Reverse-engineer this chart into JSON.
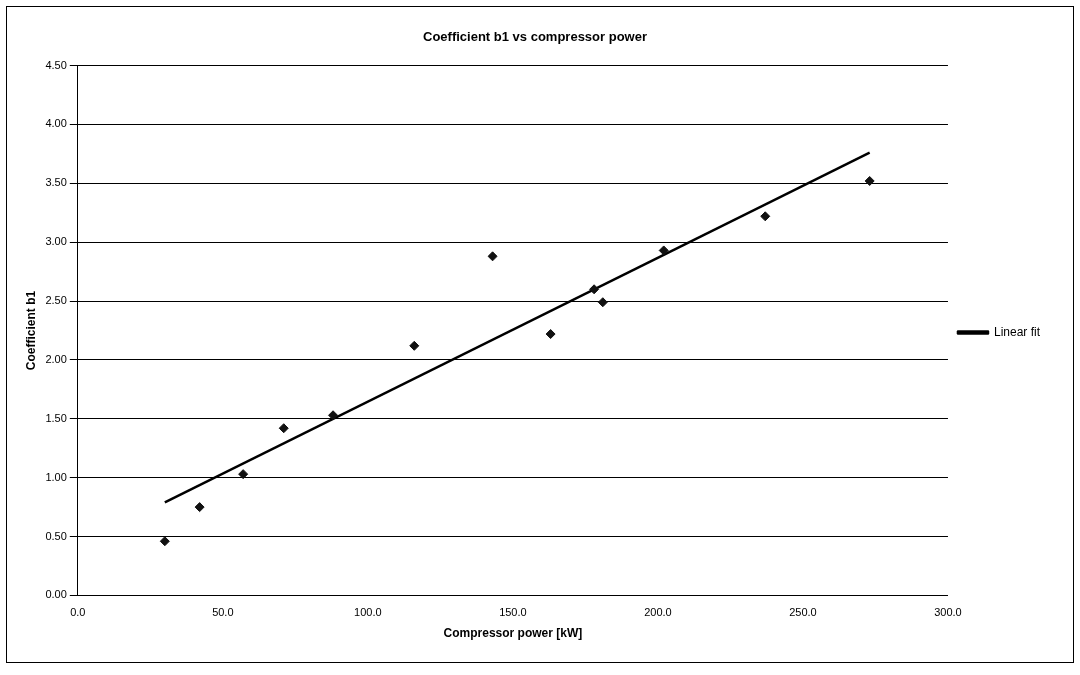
{
  "chart_data": {
    "type": "scatter",
    "title": "Coefficient b1 vs compressor power",
    "xlabel": "Compressor power [kW]",
    "ylabel": "Coefficient b1",
    "xlim": [
      0,
      300
    ],
    "xticks": [
      {
        "value": 0,
        "label": "0.0"
      },
      {
        "value": 50,
        "label": "50.0"
      },
      {
        "value": 100,
        "label": "100.0"
      },
      {
        "value": 150,
        "label": "150.0"
      },
      {
        "value": 200,
        "label": "200.0"
      },
      {
        "value": 250,
        "label": "250.0"
      },
      {
        "value": 300,
        "label": "300.0"
      }
    ],
    "ylim": [
      0,
      4.5
    ],
    "yticks": [
      {
        "value": 0,
        "label": "0.00"
      },
      {
        "value": 0.5,
        "label": "0.50"
      },
      {
        "value": 1,
        "label": "1.00"
      },
      {
        "value": 1.5,
        "label": "1.50"
      },
      {
        "value": 2,
        "label": "2.00"
      },
      {
        "value": 2.5,
        "label": "2.50"
      },
      {
        "value": 3,
        "label": "3.00"
      },
      {
        "value": 3.5,
        "label": "3.50"
      },
      {
        "value": 4,
        "label": "4.00"
      },
      {
        "value": 4.5,
        "label": "4.50"
      }
    ],
    "grid": "y",
    "legend": "right",
    "marker": "diamond",
    "series": [
      {
        "type": "scatter",
        "color": "#111111",
        "x": [
          30,
          42,
          57,
          71,
          88,
          116,
          143,
          163,
          178,
          181,
          202,
          237,
          273
        ],
        "values": [
          0.46,
          0.75,
          1.03,
          1.42,
          1.53,
          2.12,
          2.88,
          2.22,
          2.6,
          2.49,
          2.93,
          3.22,
          3.52
        ]
      },
      {
        "type": "line",
        "name": "Linear fit",
        "color": "#000000",
        "marker": "none",
        "line_style": "solid",
        "x": [
          30,
          273
        ],
        "values": [
          0.79,
          3.76
        ]
      }
    ]
  }
}
